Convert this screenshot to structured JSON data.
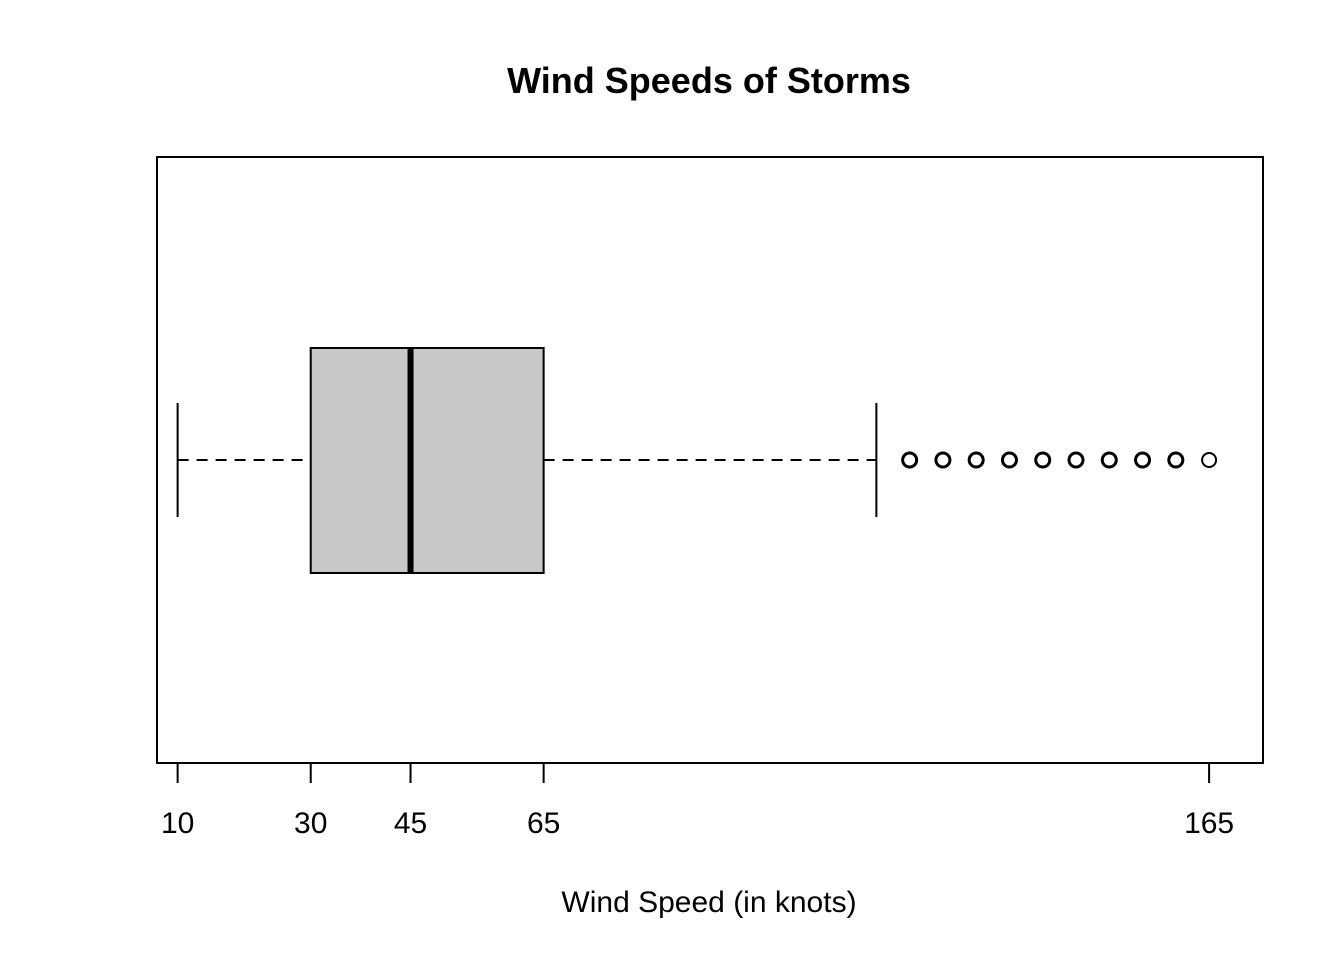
{
  "chart_data": {
    "type": "box",
    "title": "Wind Speeds of Storms",
    "xlabel": "Wind Speed (in knots)",
    "ylabel": "",
    "xlim": [
      6.9,
      173.1
    ],
    "xticks": [
      10,
      30,
      45,
      65,
      165
    ],
    "grid": false,
    "box": {
      "whisker_low": 10,
      "q1": 30,
      "median": 45,
      "q3": 65,
      "whisker_high": 115,
      "outliers": [
        120,
        125,
        130,
        135,
        140,
        145,
        150,
        155,
        160,
        165
      ]
    },
    "colors": {
      "box_fill": "#c8c8c8",
      "stroke": "#000000",
      "background": "#ffffff"
    }
  }
}
